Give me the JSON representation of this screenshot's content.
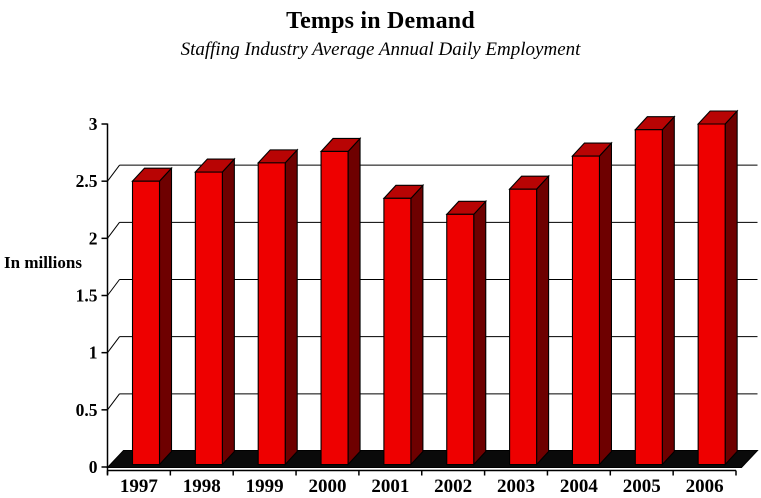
{
  "chart_data": {
    "type": "bar",
    "title": "Temps in Demand",
    "subtitle": "Staffing Industry Average Annual Daily Employment",
    "ylabel": "In millions",
    "xlabel": "",
    "categories": [
      "1997",
      "1998",
      "1999",
      "2000",
      "2001",
      "2002",
      "2003",
      "2004",
      "2005",
      "2006"
    ],
    "values": [
      2.5,
      2.58,
      2.66,
      2.76,
      2.35,
      2.21,
      2.43,
      2.72,
      2.95,
      3.0
    ],
    "y_ticks": [
      "0",
      "0.5",
      "1",
      "1.5",
      "2",
      "2.5",
      "3"
    ],
    "ylim": [
      0,
      3
    ],
    "legend": "none",
    "grid": "horizontal gridlines on 3D back plane at 0.5 intervals",
    "style": "3d-effect bars on black floor",
    "colors": {
      "bar_front": "#ee0000",
      "bar_top": "#b80404",
      "bar_side": "#6e0000",
      "floor": "#0a0a0a",
      "axis": "#000000",
      "gridline": "#000000",
      "text": "#000000",
      "background": "#ffffff"
    }
  }
}
